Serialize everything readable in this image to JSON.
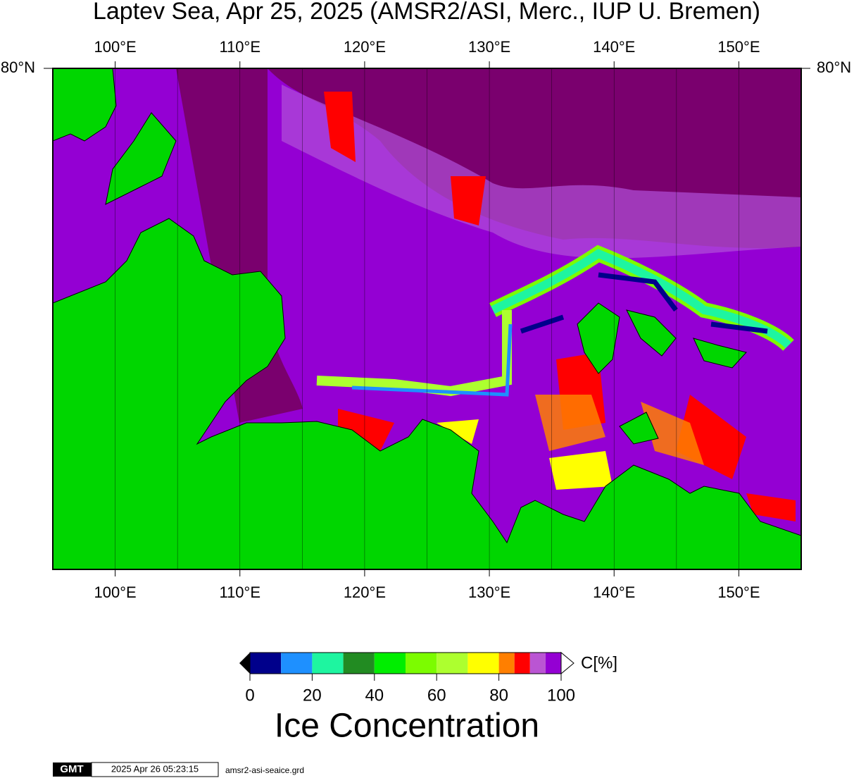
{
  "chart_data": {
    "type": "map",
    "title": "Laptev Sea, Apr 25, 2025 (AMSR2/ASI, Merc., IUP U. Bremen)",
    "xlim": [
      95,
      155
    ],
    "xticks": [
      {
        "value": 100,
        "label": "100°E"
      },
      {
        "value": 110,
        "label": "110°E"
      },
      {
        "value": 120,
        "label": "120°E"
      },
      {
        "value": 130,
        "label": "130°E"
      },
      {
        "value": 140,
        "label": "140°E"
      },
      {
        "value": 150,
        "label": "150°E"
      }
    ],
    "grid_lons": [
      100,
      105,
      110,
      115,
      120,
      125,
      130,
      135,
      140,
      145,
      150
    ],
    "lat_label": "80°N",
    "colorbar": {
      "title": "Ice Concentration",
      "label": "C[%]",
      "lim": [
        0,
        100
      ],
      "bounds": [
        0,
        10,
        20,
        30,
        40,
        50,
        60,
        70,
        80,
        85,
        90,
        95,
        100
      ],
      "colors": [
        "#00008b",
        "#1e90ff",
        "#1ef5a0",
        "#228b22",
        "#00ee00",
        "#7cfc00",
        "#adff2f",
        "#ffff00",
        "#ff7f00",
        "#ff0000",
        "#ba55d3",
        "#9400d3"
      ],
      "ticks": [
        0,
        20,
        40,
        60,
        80,
        100
      ]
    },
    "footer": {
      "logo": "GMT",
      "timestamp": "2025 Apr 26 05:23:15",
      "file": "amsr2-asi-seaice.grd"
    }
  }
}
